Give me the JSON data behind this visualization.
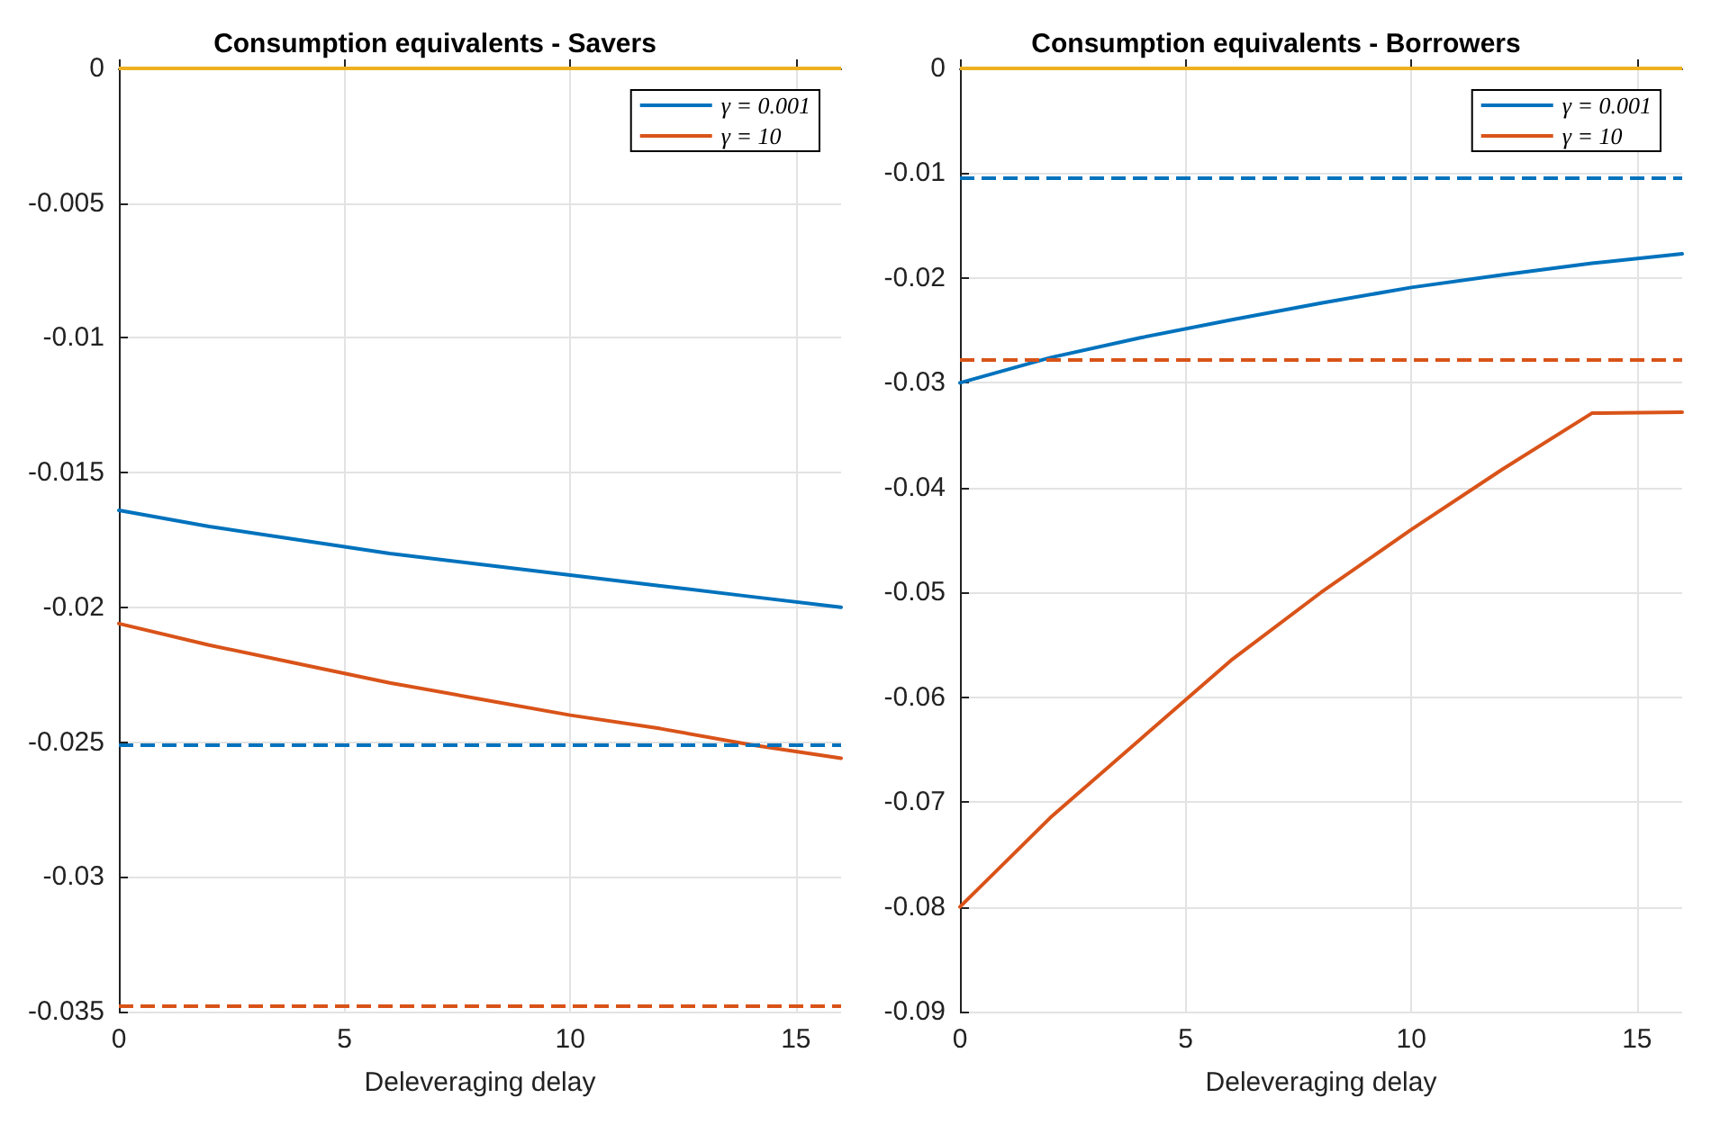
{
  "chart_data": [
    {
      "type": "line",
      "title": "Consumption equivalents - Savers",
      "xlabel": "Deleveraging delay",
      "x": [
        0,
        2,
        4,
        6,
        8,
        10,
        12,
        14,
        16
      ],
      "series": [
        {
          "name": "γ = 0.001",
          "color": "#0072bd",
          "values": [
            -0.0164,
            -0.017,
            -0.0175,
            -0.018,
            -0.0184,
            -0.0188,
            -0.0192,
            -0.0196,
            -0.02
          ]
        },
        {
          "name": "γ = 10",
          "color": "#d95319",
          "values": [
            -0.0206,
            -0.0214,
            -0.0221,
            -0.0228,
            -0.0234,
            -0.024,
            -0.0245,
            -0.0251,
            -0.0256
          ]
        }
      ],
      "ref_lines": [
        {
          "axis": "y",
          "value": 0,
          "color": "#edb120",
          "line_style": "solid"
        },
        {
          "axis": "y",
          "value": -0.0251,
          "color": "#0072bd",
          "line_style": "dashed"
        },
        {
          "axis": "y",
          "value": -0.0348,
          "color": "#d95319",
          "line_style": "dashed"
        }
      ],
      "xlim": [
        0,
        16
      ],
      "xticks": [
        0,
        5,
        10,
        15
      ],
      "ylim": [
        -0.035,
        0
      ],
      "yticks": [
        -0.035,
        -0.03,
        -0.025,
        -0.02,
        -0.015,
        -0.01,
        -0.005,
        0
      ],
      "grid": true,
      "legend": "top right",
      "line_style": "solid"
    },
    {
      "type": "line",
      "title": "Consumption equivalents - Borrowers",
      "xlabel": "Deleveraging delay",
      "x": [
        0,
        2,
        4,
        6,
        8,
        10,
        12,
        14,
        16
      ],
      "series": [
        {
          "name": "γ = 0.001",
          "color": "#0072bd",
          "values": [
            -0.03,
            -0.0276,
            -0.0257,
            -0.024,
            -0.0224,
            -0.0209,
            -0.0197,
            -0.0186,
            -0.0177
          ]
        },
        {
          "name": "γ = 10",
          "color": "#d95319",
          "values": [
            -0.08,
            -0.0715,
            -0.064,
            -0.0565,
            -0.05,
            -0.044,
            -0.0383,
            -0.0329,
            -0.0328
          ]
        }
      ],
      "ref_lines": [
        {
          "axis": "y",
          "value": 0,
          "color": "#edb120",
          "line_style": "solid"
        },
        {
          "axis": "y",
          "value": -0.0105,
          "color": "#0072bd",
          "line_style": "dashed"
        },
        {
          "axis": "y",
          "value": -0.0277,
          "color": "#d95319",
          "line_style": "dashed"
        }
      ],
      "xlim": [
        0,
        16
      ],
      "xticks": [
        0,
        5,
        10,
        15
      ],
      "ylim": [
        -0.09,
        0
      ],
      "yticks": [
        -0.09,
        -0.08,
        -0.07,
        -0.06,
        -0.05,
        -0.04,
        -0.03,
        -0.02,
        -0.01,
        0
      ],
      "grid": true,
      "legend": "top right",
      "line_style": "solid"
    }
  ]
}
